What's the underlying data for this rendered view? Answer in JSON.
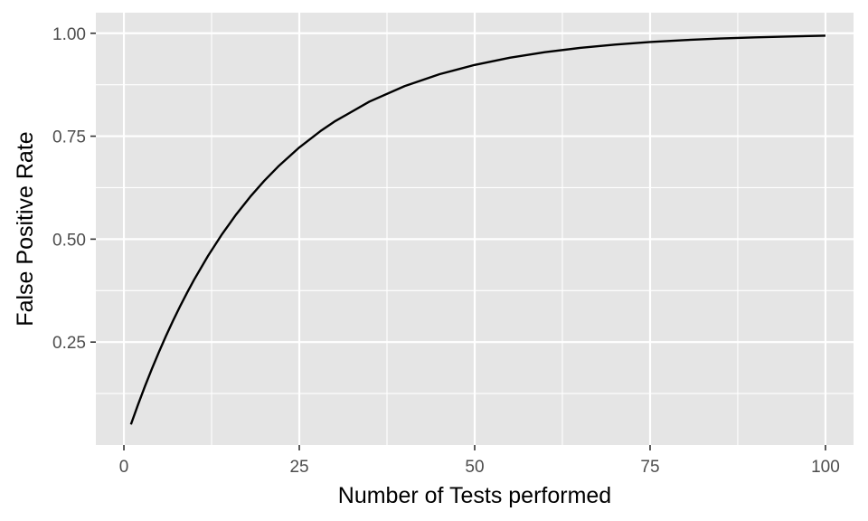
{
  "chart_data": {
    "type": "line",
    "title": "",
    "xlabel": "Number of Tests performed",
    "ylabel": "False Positive Rate",
    "xlim": [
      -4,
      104
    ],
    "ylim": [
      -0.0,
      1.05
    ],
    "x_ticks": [
      0,
      25,
      50,
      75,
      100
    ],
    "x_tick_labels": [
      "0",
      "25",
      "50",
      "75",
      "100"
    ],
    "y_ticks": [
      0.25,
      0.5,
      0.75,
      1.0
    ],
    "y_tick_labels": [
      "0.25",
      "0.50",
      "0.75",
      "1.00"
    ],
    "grid": true,
    "colors": {
      "panel": "#e5e5e5",
      "grid": "#ffffff",
      "line": "#000000",
      "tick": "#333333"
    },
    "series": [
      {
        "x": [
          1,
          2,
          3,
          4,
          5,
          6,
          7,
          8,
          9,
          10,
          12,
          14,
          16,
          18,
          20,
          22,
          25,
          28,
          30,
          35,
          40,
          45,
          50,
          55,
          60,
          65,
          70,
          75,
          80,
          85,
          90,
          95,
          100
        ],
        "values": [
          0.05,
          0.0975,
          0.1426,
          0.1855,
          0.2262,
          0.2649,
          0.3017,
          0.3366,
          0.3698,
          0.4013,
          0.4596,
          0.5123,
          0.5599,
          0.6028,
          0.6415,
          0.6765,
          0.7226,
          0.7622,
          0.7854,
          0.834,
          0.8715,
          0.9006,
          0.9231,
          0.9405,
          0.954,
          0.9644,
          0.9724,
          0.9787,
          0.9835,
          0.9872,
          0.9901,
          0.9923,
          0.9941
        ]
      }
    ]
  }
}
